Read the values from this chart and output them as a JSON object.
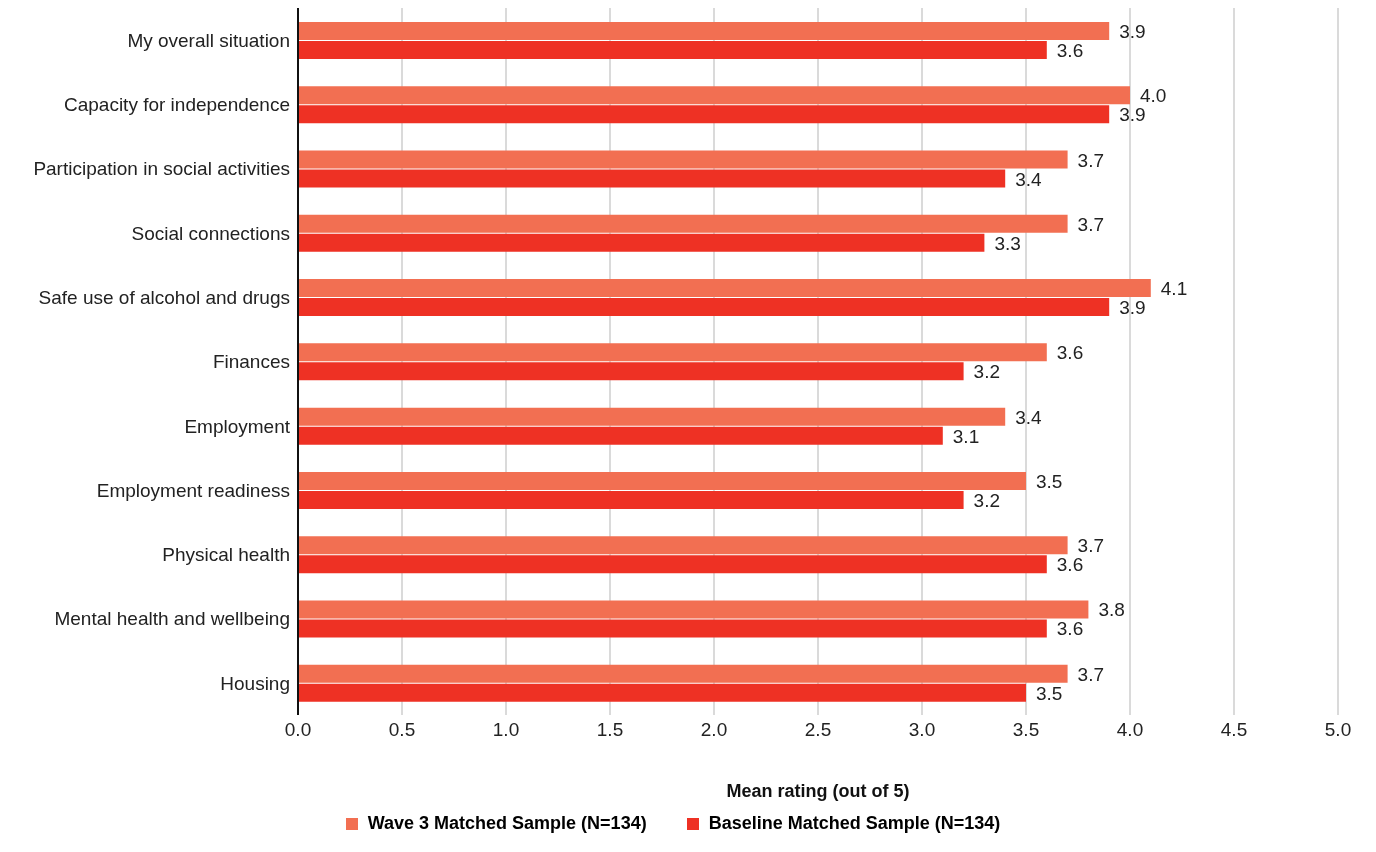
{
  "chart_data": {
    "type": "bar",
    "orientation": "horizontal",
    "xlabel": "Mean rating (out of 5)",
    "categories": [
      "My overall situation",
      "Capacity for independence",
      "Participation in social activities",
      "Social connections",
      "Safe use of alcohol and drugs",
      "Finances",
      "Employment",
      "Employment readiness",
      "Physical health",
      "Mental health and wellbeing",
      "Housing"
    ],
    "series": [
      {
        "name": "Wave 3 Matched Sample (N=134)",
        "color": "#f26f52",
        "values": [
          3.9,
          4.0,
          3.7,
          3.7,
          4.1,
          3.6,
          3.4,
          3.5,
          3.7,
          3.8,
          3.7
        ],
        "value_labels": [
          "3.9",
          "4.0",
          "3.7",
          "3.7",
          "4.1",
          "3.6",
          "3.4",
          "3.5",
          "3.7",
          "3.8",
          "3.7"
        ]
      },
      {
        "name": "Baseline Matched Sample (N=134)",
        "color": "#ee3124",
        "values": [
          3.6,
          3.9,
          3.4,
          3.3,
          3.9,
          3.2,
          3.1,
          3.2,
          3.6,
          3.6,
          3.5
        ],
        "value_labels": [
          "3.6",
          "3.9",
          "3.4",
          "3.3",
          "3.9",
          "3.2",
          "3.1",
          "3.2",
          "3.6",
          "3.6",
          "3.5"
        ]
      }
    ],
    "xlim": [
      0,
      5
    ],
    "xticks": [
      {
        "value": 0,
        "label": "0.0"
      },
      {
        "value": 0.5,
        "label": "0.5"
      },
      {
        "value": 1,
        "label": "1.0"
      },
      {
        "value": 1.5,
        "label": "1.5"
      },
      {
        "value": 2,
        "label": "2.0"
      },
      {
        "value": 2.5,
        "label": "2.5"
      },
      {
        "value": 3,
        "label": "3.0"
      },
      {
        "value": 3.5,
        "label": "3.5"
      },
      {
        "value": 4,
        "label": "4.0"
      },
      {
        "value": 4.5,
        "label": "4.5"
      },
      {
        "value": 5,
        "label": "5.0"
      }
    ],
    "grid": "x",
    "legend": "bottom"
  }
}
